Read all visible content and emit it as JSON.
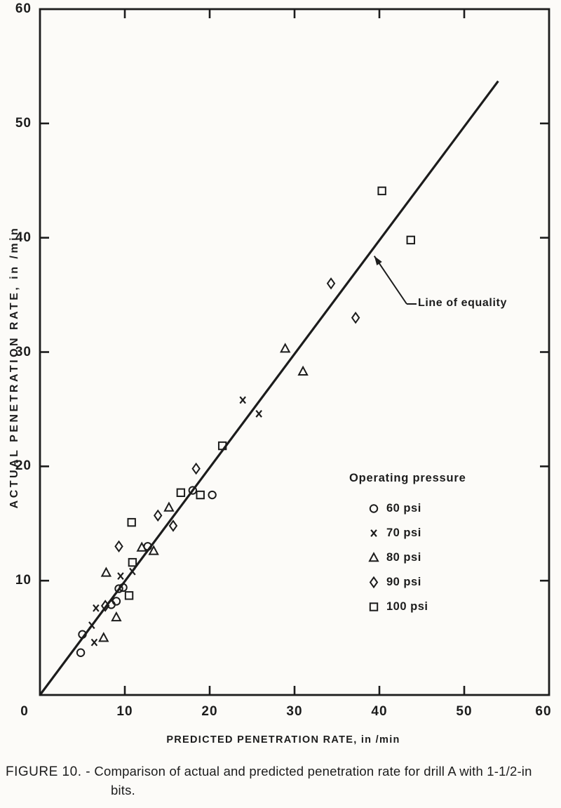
{
  "figure": {
    "caption": {
      "label": "FIGURE 10. -",
      "line1": "Comparison of actual and predicted penetration rate for drill A with 1-1/2-in",
      "line2": "bits."
    }
  },
  "colors": {
    "ink": "#1c1c1c",
    "paper": "#fcfbf8"
  },
  "chart_data": {
    "type": "scatter",
    "title": "",
    "xlabel": "PREDICTED PENETRATION RATE, in /min",
    "ylabel": "ACTUAL PENETRATION RATE, in /min",
    "xlim": [
      0,
      60
    ],
    "ylim": [
      0,
      60
    ],
    "x_tick_labels": [
      0,
      10,
      20,
      30,
      40,
      50,
      60
    ],
    "y_tick_labels": [
      10,
      20,
      30,
      40,
      50,
      60
    ],
    "tick_marks": [
      10,
      20,
      30,
      40,
      50
    ],
    "grid": false,
    "frame": "box",
    "legend": {
      "title": "Operating pressure",
      "position": "inside-right-middle"
    },
    "equality_line": {
      "from": [
        0,
        0
      ],
      "to": [
        54,
        53.7
      ]
    },
    "annotation": {
      "text": "Line of equality",
      "arrow_tip_xy": [
        39.4,
        38.4
      ]
    },
    "series": [
      {
        "name": "60 psi",
        "marker": "circle",
        "points": [
          [
            4.8,
            3.7
          ],
          [
            5.0,
            5.3
          ],
          [
            8.4,
            7.9
          ],
          [
            9.0,
            8.2
          ],
          [
            9.3,
            9.3
          ],
          [
            9.8,
            9.4
          ],
          [
            12.7,
            13.0
          ],
          [
            18.0,
            17.9
          ],
          [
            20.3,
            17.5
          ]
        ]
      },
      {
        "name": "70 psi",
        "marker": "x",
        "points": [
          [
            6.1,
            6.1
          ],
          [
            6.4,
            4.6
          ],
          [
            6.6,
            7.6
          ],
          [
            9.5,
            10.4
          ],
          [
            10.9,
            10.8
          ],
          [
            23.9,
            25.8
          ],
          [
            25.8,
            24.6
          ]
        ]
      },
      {
        "name": "80 psi",
        "marker": "triangle",
        "points": [
          [
            7.5,
            5.0
          ],
          [
            9.0,
            6.8
          ],
          [
            7.8,
            10.7
          ],
          [
            12.0,
            12.9
          ],
          [
            13.4,
            12.6
          ],
          [
            15.2,
            16.4
          ],
          [
            28.9,
            30.3
          ],
          [
            31.0,
            28.3
          ]
        ]
      },
      {
        "name": "90 psi",
        "marker": "diamond",
        "points": [
          [
            7.7,
            7.8
          ],
          [
            9.3,
            13.0
          ],
          [
            13.9,
            15.7
          ],
          [
            15.7,
            14.8
          ],
          [
            18.4,
            19.8
          ],
          [
            34.3,
            36.0
          ],
          [
            37.2,
            33.0
          ]
        ]
      },
      {
        "name": "100 psi",
        "marker": "square",
        "points": [
          [
            10.5,
            8.7
          ],
          [
            10.9,
            11.6
          ],
          [
            10.8,
            15.1
          ],
          [
            16.6,
            17.7
          ],
          [
            18.9,
            17.5
          ],
          [
            21.5,
            21.8
          ],
          [
            40.3,
            44.1
          ],
          [
            43.7,
            39.8
          ]
        ]
      }
    ]
  }
}
